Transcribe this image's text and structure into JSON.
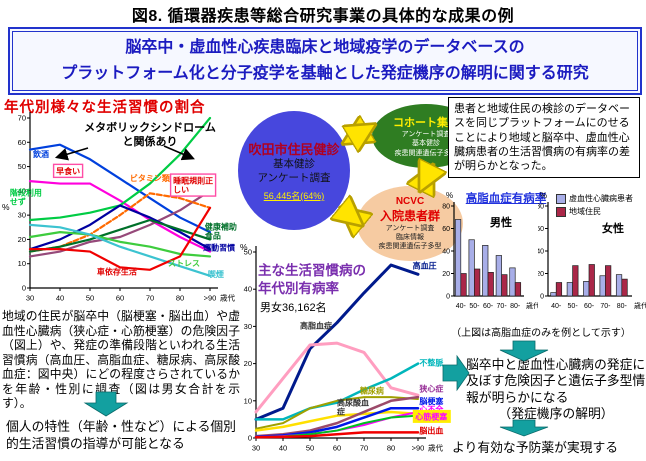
{
  "figure_title": "図8. 循環器疾患等総合研究事業の具体的な成果の例",
  "banner": {
    "line1": "脳卒中・虚血性心疾患臨床と地域疫学のデータベースの",
    "line2": "プラットフォーム化と分子疫学を基軸とした発症機序の解明に関する研究"
  },
  "left_section": {
    "paragraph": "地域の住民が脳卒中（脳梗塞・脳出血）や虚血性心臓病（狭心症・心筋梗塞）の危険因子（図上）や、発症の準備段階といわれる生活習慣病（高血圧、高脂血症、糖尿病、高尿酸血症：図中央）にどの程度さらされているかを年齢・性別に調査（図は男女合計を示す）。",
    "conclusion": "個人の特性（年齢・性など）による個別的生活習慣の指導が可能となる"
  },
  "center_section": {
    "suita_circle": {
      "title": "吹田市住民健診",
      "line1": "基本健診",
      "line2": "アンケート調査",
      "count": "56,445名(64%)"
    },
    "cohort_ellipse": {
      "title": "コホート集団",
      "line1": "アンケート調査",
      "line2": "基本健診",
      "line3": "疾患関連遺伝子多型"
    },
    "ncvc_ellipse": {
      "title1": "NCVC",
      "title2": "入院患者群",
      "line1": "アンケート調査",
      "line2": "臨床情報",
      "line3": "疾患関連遺伝子多型"
    }
  },
  "right_section": {
    "finding": "患者と地域住民の検診のデータベースを同じプラットフォームにのせることにより地域と脳卒中、虚血性心臓病患者の生活習慣病の有病率の差が明らかとなった。",
    "note": "（上図は高脂血症のみを例として示す）",
    "outcome1": "脳卒中と虚血性心臓病の発症に及ぼす危険因子と遺伝子多型情報が明らかになる",
    "outcome1_sub": "（発症機序の解明）",
    "outcome2": "より有効な予防薬が実現する"
  },
  "chart_data": [
    {
      "type": "line",
      "title": "年代別様々な生活習慣の割合",
      "annotation": "メタボリックシンドロームと関係あり",
      "ylabel": "%",
      "xlabel": "歳代",
      "categories": [
        "30",
        "40",
        "50",
        "60",
        "70",
        "80",
        ">90"
      ],
      "ylim": [
        0,
        70
      ],
      "yticks": [
        0,
        10,
        20,
        30,
        40,
        50,
        60,
        70
      ],
      "series": [
        {
          "name": "飲酒",
          "color": "#0040dd",
          "values": [
            57,
            59,
            53,
            45,
            37,
            29,
            23
          ],
          "label": {
            "x": 0.1,
            "y": 54
          }
        },
        {
          "name": "早食い",
          "color": "#ff00dd",
          "values": [
            44,
            43,
            43,
            36,
            28,
            21,
            15
          ],
          "boxed": true,
          "label_color": "#e00000",
          "label": {
            "x": 0.87,
            "y": 47
          }
        },
        {
          "name": "階段利用\nせず",
          "color": "#00cc44",
          "values": [
            28,
            29,
            31,
            34,
            43,
            55,
            70
          ],
          "label": {
            "x": -0.67,
            "y": 38
          }
        },
        {
          "name": "睡眠規則正\nしい",
          "color": "#96497a",
          "values": [
            13,
            15,
            19,
            21,
            26,
            32,
            40
          ],
          "boxed": true,
          "label_color": "#e00000",
          "label": {
            "x": 4.77,
            "y": 43
          }
        },
        {
          "name": "ビタミン類",
          "color": "#ff6a00",
          "dash": true,
          "values": [
            15,
            17,
            22,
            30,
            39,
            37,
            33
          ],
          "label": {
            "x": 3.33,
            "y": 44
          }
        },
        {
          "name": "運動習慣",
          "color": "#0000a0",
          "values": [
            16,
            20,
            26,
            34,
            29,
            23,
            16
          ],
          "label": {
            "x": 5.77,
            "y": 15.5
          }
        },
        {
          "name": "健康補助\n食品",
          "color": "#00702a",
          "values": [
            15,
            17,
            20,
            24,
            28,
            24,
            20
          ],
          "label": {
            "x": 5.83,
            "y": 24
          }
        },
        {
          "name": "ストレス",
          "color": "#3ecc3e",
          "values": [
            21,
            23,
            22,
            19,
            17,
            14,
            13
          ],
          "label": {
            "x": 4.6,
            "y": 9
          }
        },
        {
          "name": "喫煙",
          "color": "#3cc3d0",
          "values": [
            26,
            25,
            22,
            17,
            13,
            9,
            5
          ],
          "label": {
            "x": 5.93,
            "y": 4.5
          }
        },
        {
          "name": "車依存生活",
          "color": "#f00000",
          "values": [
            16,
            16,
            15,
            8.5,
            7.5,
            13,
            33
          ],
          "label_color": "#e00000",
          "label": {
            "x": 2.23,
            "y": 5.5
          }
        }
      ]
    },
    {
      "type": "line",
      "title": "主な生活習慣病の年代別有病率",
      "subtitle": "男女36,162名",
      "ylabel": "%",
      "xlabel": "歳代",
      "categories": [
        "30",
        "40",
        "50",
        "60",
        "70",
        "80",
        ">90"
      ],
      "ylim": [
        0,
        50
      ],
      "yticks": [
        0,
        10,
        20,
        30,
        40,
        50
      ],
      "series": [
        {
          "name": "高血圧",
          "color": "#001a8c",
          "width": 3,
          "values": [
            5,
            8,
            24,
            31,
            39,
            46.5,
            44
          ],
          "label": {
            "x": 5.8,
            "y": 45.5
          }
        },
        {
          "name": "高脂血症",
          "color": "#ff9ec0",
          "width": 3,
          "values": [
            7,
            16,
            25,
            25.5,
            23,
            13.5,
            11.5
          ],
          "label_color": "#333333",
          "label": {
            "x": 1.63,
            "y": 29.5
          }
        },
        {
          "name": "不整脈",
          "color": "#00b6bb",
          "width": 2.5,
          "values": [
            5,
            5,
            8,
            9.5,
            13,
            16,
            20
          ],
          "label": {
            "x": 6.05,
            "y": 19.5
          }
        },
        {
          "name": "糖尿病",
          "color": "#a0a000",
          "width": 2,
          "values": [
            2.5,
            4,
            8,
            10,
            11,
            11,
            10.5
          ],
          "label": {
            "x": 3.85,
            "y": 12
          }
        },
        {
          "name": "高尿酸血\n症",
          "color": "#ffe000",
          "width": 2.5,
          "values": [
            2,
            3,
            4.5,
            6,
            6.5,
            7,
            6.5
          ],
          "label_color": "#333333",
          "label": {
            "x": 3.0,
            "y": 8.8
          }
        },
        {
          "name": "狭心症",
          "color": "#9c4a6a",
          "width": 2.5,
          "values": [
            0.5,
            1,
            2,
            4,
            7,
            10,
            11
          ],
          "label_color": "#993399",
          "label": {
            "x": 6.05,
            "y": 12.5
          }
        },
        {
          "name": "脳梗塞",
          "color": "#0018e8",
          "width": 2.5,
          "values": [
            0.3,
            0.7,
            1.5,
            3,
            5.5,
            8,
            8
          ],
          "label": {
            "x": 6.05,
            "y": 9.2
          }
        },
        {
          "name": "心不全",
          "color": "#ff00ff",
          "width": 2,
          "values": [
            0.2,
            0.5,
            1,
            2,
            3.5,
            5.5,
            7
          ],
          "label": {
            "x": 6.05,
            "y": 7.0
          }
        },
        {
          "name": "心筋梗塞",
          "color": "#00c020",
          "width": 2,
          "values": [
            0.2,
            0.4,
            1,
            2,
            4,
            5.5,
            6
          ],
          "label_color": "#ff00ff",
          "label_bg": "#ffee00",
          "label": {
            "x": 5.9,
            "y": 5.0
          }
        },
        {
          "name": "脳出血",
          "color": "#f00000",
          "width": 2.5,
          "values": [
            0.2,
            0.3,
            0.5,
            1,
            1.5,
            1.5,
            1.5
          ],
          "label_color": "#e00000",
          "label": {
            "x": 6.05,
            "y": 1.2
          }
        }
      ]
    },
    {
      "type": "bar",
      "title": "高脂血症有病率",
      "ylabel": "%",
      "xlabel": "歳代",
      "categories": [
        "40-",
        "50-",
        "60-",
        "70-",
        "80-"
      ],
      "ylim": [
        0,
        80
      ],
      "yticks": [
        0,
        20,
        40,
        60,
        80
      ],
      "legend": [
        {
          "label": "虚血性心臓病患者",
          "color": "#a8aee8"
        },
        {
          "label": "地域住民",
          "color": "#aa2748"
        }
      ],
      "groups": [
        {
          "name": "男性",
          "series": [
            [
              68,
              50,
              45,
              36,
              25
            ],
            [
              20,
              24,
              21,
              19,
              12
            ]
          ]
        },
        {
          "name": "女性",
          "series": [
            [
              3,
              12,
              13,
              18,
              19
            ],
            [
              12,
              27,
              28,
              27,
              15
            ]
          ]
        }
      ]
    }
  ]
}
